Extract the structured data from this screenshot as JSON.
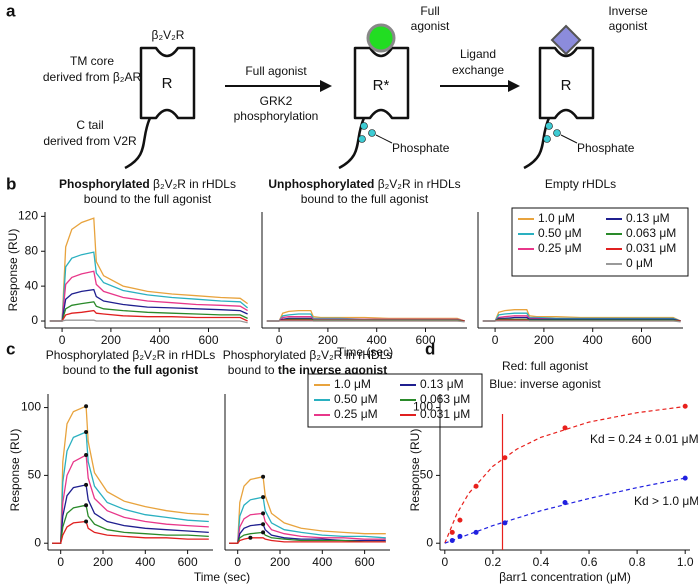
{
  "panel_labels": [
    "a",
    "b",
    "c",
    "d"
  ],
  "diagram": {
    "receptor_label": "β₂V₂R",
    "tm_core": [
      "TM core",
      "derived from β₂AR"
    ],
    "c_tail": [
      "C tail",
      "derived from V2R"
    ],
    "r1": "R",
    "step1": "Full agonist",
    "step1_below": [
      "GRK2",
      "phosphorylation"
    ],
    "ligand1": [
      "Full",
      "agonist"
    ],
    "r2": "R*",
    "phosphate1": "Phosphate",
    "step2": [
      "Ligand",
      "exchange"
    ],
    "ligand2": [
      "Inverse",
      "agonist"
    ],
    "r3": "R",
    "phosphate2": "Phosphate"
  },
  "chart_data": [
    {
      "type": "line",
      "title": [
        [
          {
            "text": "Phosphorylated",
            "bold": true
          },
          {
            "text": " β₂V₂R in rHDLs",
            "bold": false
          }
        ],
        [
          {
            "text": "bound to the full agonist",
            "bold": false
          }
        ]
      ],
      "ylabel": "Response (RU)",
      "x": [
        -50,
        0,
        15,
        40,
        80,
        130,
        140,
        170,
        250,
        350,
        450,
        550,
        650,
        730,
        760
      ],
      "xlim": [
        -70,
        770
      ],
      "ylim": [
        -8,
        125
      ],
      "xticks": [
        0,
        200,
        400,
        600
      ],
      "yticks": [
        0,
        40,
        80,
        120
      ],
      "series": [
        {
          "color": "#e8a33d",
          "values": [
            0,
            0,
            85,
            105,
            113,
            118,
            68,
            52,
            40,
            34,
            31,
            29,
            27,
            26,
            20
          ]
        },
        {
          "color": "#2ab0c0",
          "values": [
            0,
            0,
            62,
            72,
            76,
            79,
            55,
            44,
            35,
            30,
            27,
            25,
            23,
            22,
            15
          ]
        },
        {
          "color": "#e8378a",
          "values": [
            0,
            0,
            42,
            50,
            54,
            57,
            42,
            34,
            27,
            23,
            21,
            19,
            18,
            17,
            12
          ]
        },
        {
          "color": "#1f1f8f",
          "values": [
            0,
            0,
            25,
            31,
            34,
            36,
            28,
            23,
            19,
            16,
            15,
            14,
            13,
            12,
            8
          ]
        },
        {
          "color": "#2a8a2a",
          "values": [
            0,
            0,
            14,
            18,
            20,
            22,
            17,
            14,
            12,
            10,
            9,
            8,
            7,
            7,
            3
          ]
        },
        {
          "color": "#e02020",
          "values": [
            0,
            0,
            7,
            9,
            10,
            12,
            9,
            8,
            6,
            5,
            5,
            4,
            4,
            4,
            0
          ]
        },
        {
          "color": "#999999",
          "values": [
            0,
            0,
            1,
            1,
            1,
            1,
            0,
            0,
            0,
            0,
            0,
            0,
            0,
            0,
            -2
          ]
        }
      ]
    },
    {
      "type": "line",
      "title": [
        [
          {
            "text": "Unphosphorylated",
            "bold": true
          },
          {
            "text": " β₂V₂R in rHDLs",
            "bold": false
          }
        ],
        [
          {
            "text": "bound to the full agonist",
            "bold": false
          }
        ]
      ],
      "xlabel": "Time (sec)",
      "x": [
        -50,
        0,
        15,
        40,
        80,
        130,
        140,
        170,
        250,
        350,
        450,
        550,
        650,
        730,
        760
      ],
      "xlim": [
        -70,
        770
      ],
      "ylim": [
        -8,
        125
      ],
      "xticks": [
        0,
        200,
        400,
        600
      ],
      "series": [
        {
          "color": "#e8a33d",
          "values": [
            0,
            0,
            9,
            11,
            12,
            12,
            5,
            4,
            4,
            4,
            3,
            3,
            3,
            3,
            0
          ]
        },
        {
          "color": "#2ab0c0",
          "values": [
            0,
            0,
            6,
            7,
            8,
            8,
            3,
            3,
            3,
            2,
            2,
            2,
            2,
            2,
            0
          ]
        },
        {
          "color": "#e8378a",
          "values": [
            0,
            0,
            4,
            5,
            5,
            5,
            2,
            2,
            2,
            2,
            2,
            2,
            2,
            2,
            0
          ]
        },
        {
          "color": "#1f1f8f",
          "values": [
            0,
            0,
            2,
            3,
            3,
            3,
            1,
            1,
            1,
            1,
            1,
            1,
            1,
            1,
            0
          ]
        },
        {
          "color": "#2a8a2a",
          "values": [
            0,
            0,
            1,
            2,
            2,
            2,
            1,
            1,
            1,
            1,
            1,
            1,
            1,
            1,
            0
          ]
        },
        {
          "color": "#e02020",
          "values": [
            0,
            0,
            1,
            1,
            1,
            1,
            0,
            0,
            0,
            0,
            0,
            0,
            0,
            0,
            0
          ]
        },
        {
          "color": "#999999",
          "values": [
            0,
            0,
            0,
            0,
            0,
            0,
            0,
            0,
            0,
            0,
            0,
            0,
            0,
            0,
            -1
          ]
        }
      ]
    },
    {
      "type": "line",
      "title": [
        [
          {
            "text": "Empty rHDLs",
            "bold": false
          }
        ]
      ],
      "x": [
        -50,
        0,
        15,
        40,
        80,
        130,
        140,
        170,
        250,
        350,
        450,
        550,
        650,
        730,
        760
      ],
      "xlim": [
        -70,
        770
      ],
      "ylim": [
        -8,
        125
      ],
      "xticks": [
        0,
        200,
        400,
        600
      ],
      "legend": "upper right",
      "series": [
        {
          "name": "1.0 μM",
          "color": "#e8a33d",
          "values": [
            0,
            0,
            10,
            12,
            13,
            13,
            6,
            5,
            5,
            4,
            4,
            4,
            4,
            4,
            0
          ]
        },
        {
          "name": "0.50 μM",
          "color": "#2ab0c0",
          "values": [
            0,
            0,
            7,
            8,
            9,
            9,
            4,
            4,
            3,
            3,
            3,
            3,
            3,
            3,
            0
          ]
        },
        {
          "name": "0.25 μM",
          "color": "#e8378a",
          "values": [
            0,
            0,
            4,
            5,
            6,
            6,
            3,
            3,
            2,
            2,
            2,
            2,
            2,
            2,
            0
          ]
        },
        {
          "name": "0.13 μM",
          "color": "#1f1f8f",
          "values": [
            0,
            0,
            3,
            3,
            4,
            4,
            2,
            2,
            2,
            2,
            2,
            2,
            2,
            2,
            0
          ]
        },
        {
          "name": "0.063 μM",
          "color": "#2a8a2a",
          "values": [
            0,
            0,
            2,
            2,
            2,
            2,
            1,
            1,
            1,
            1,
            1,
            1,
            1,
            1,
            0
          ]
        },
        {
          "name": "0.031 μM",
          "color": "#e02020",
          "values": [
            0,
            0,
            1,
            1,
            1,
            1,
            0,
            0,
            0,
            0,
            0,
            0,
            0,
            0,
            0
          ]
        },
        {
          "name": "0 μM",
          "color": "#999999",
          "values": [
            0,
            0,
            0,
            0,
            0,
            0,
            0,
            0,
            0,
            0,
            0,
            0,
            0,
            0,
            -1
          ]
        }
      ]
    },
    {
      "type": "line",
      "title": [
        [
          {
            "text": "Phosphorylated β₂V₂R in rHDLs",
            "bold": false
          }
        ],
        [
          {
            "text": "bound to ",
            "bold": false
          },
          {
            "text": "the full agonist",
            "bold": true
          }
        ]
      ],
      "ylabel": "Response (RU)",
      "xlabel": "Time (sec)",
      "peak_markers": true,
      "x": [
        -40,
        0,
        10,
        30,
        60,
        120,
        130,
        160,
        220,
        300,
        400,
        500,
        600,
        700
      ],
      "xlim": [
        -60,
        720
      ],
      "ylim": [
        -5,
        110
      ],
      "xticks": [
        0,
        200,
        400,
        600
      ],
      "yticks": [
        0,
        50,
        100
      ],
      "series": [
        {
          "color": "#e8a33d",
          "values": [
            0,
            0,
            60,
            88,
            97,
            101,
            75,
            52,
            38,
            31,
            27,
            24,
            22,
            21
          ]
        },
        {
          "color": "#2ab0c0",
          "values": [
            0,
            0,
            45,
            68,
            78,
            82,
            60,
            42,
            30,
            25,
            21,
            19,
            17,
            16
          ]
        },
        {
          "color": "#e8378a",
          "values": [
            0,
            0,
            30,
            50,
            60,
            65,
            48,
            33,
            24,
            19,
            16,
            14,
            13,
            12
          ]
        },
        {
          "color": "#1f1f8f",
          "values": [
            0,
            0,
            20,
            35,
            41,
            43,
            32,
            22,
            16,
            13,
            11,
            10,
            9,
            8
          ]
        },
        {
          "color": "#2a8a2a",
          "values": [
            0,
            0,
            12,
            22,
            26,
            28,
            20,
            14,
            10,
            8,
            7,
            6,
            6,
            5
          ]
        },
        {
          "color": "#e02020",
          "values": [
            0,
            0,
            6,
            12,
            15,
            16,
            11,
            8,
            6,
            5,
            4,
            4,
            3,
            3
          ]
        }
      ]
    },
    {
      "type": "line",
      "title": [
        [
          {
            "text": "Phosphorylated β₂V₂R in rHDLs",
            "bold": false
          }
        ],
        [
          {
            "text": "bound to ",
            "bold": false
          },
          {
            "text": "the inverse agonist",
            "bold": true
          }
        ]
      ],
      "peak_markers": true,
      "legend": "upper right",
      "x": [
        -40,
        0,
        10,
        30,
        60,
        120,
        130,
        160,
        220,
        300,
        400,
        500,
        600,
        700
      ],
      "xlim": [
        -60,
        720
      ],
      "ylim": [
        -5,
        110
      ],
      "xticks": [
        0,
        200,
        400,
        600
      ],
      "series": [
        {
          "name": "1.0 μM",
          "color": "#e8a33d",
          "values": [
            0,
            0,
            30,
            42,
            47,
            49,
            35,
            22,
            15,
            11,
            9,
            8,
            7,
            7
          ]
        },
        {
          "name": "0.50 μM",
          "color": "#2ab0c0",
          "values": [
            0,
            0,
            20,
            28,
            32,
            34,
            24,
            15,
            10,
            8,
            6,
            5,
            5,
            4
          ]
        },
        {
          "name": "0.25 μM",
          "color": "#e8378a",
          "values": [
            0,
            0,
            12,
            18,
            21,
            22,
            16,
            10,
            7,
            5,
            4,
            4,
            3,
            3
          ]
        },
        {
          "name": "0.13 μM",
          "color": "#1f1f8f",
          "values": [
            0,
            0,
            7,
            11,
            13,
            14,
            10,
            6,
            4,
            3,
            3,
            2,
            2,
            2
          ]
        },
        {
          "name": "0.063 μM",
          "color": "#2a8a2a",
          "values": [
            0,
            0,
            4,
            6,
            7,
            8,
            6,
            4,
            3,
            2,
            2,
            2,
            1,
            1
          ]
        },
        {
          "name": "0.031 μM",
          "color": "#e02020",
          "values": [
            0,
            0,
            2,
            3,
            4,
            4,
            3,
            2,
            1,
            1,
            1,
            1,
            1,
            1
          ]
        }
      ]
    },
    {
      "type": "scatter",
      "ylabel": "Response (RU)",
      "xlabel": "βarr1 concentration (μM)",
      "x": [
        0.031,
        0.063,
        0.13,
        0.25,
        0.5,
        1.0
      ],
      "xlim": [
        -0.02,
        1.02
      ],
      "ylim": [
        -5,
        110
      ],
      "xticks": [
        0,
        0.2,
        0.4,
        0.6,
        0.8,
        {
          "value": 1,
          "label": "1.0"
        }
      ],
      "yticks": [
        0,
        50,
        100
      ],
      "series": [
        {
          "color": "#e8201c",
          "values": [
            8,
            17,
            42,
            63,
            85,
            101
          ],
          "fit": {
            "x": [
              0,
              0.05,
              0.1,
              0.2,
              0.3,
              0.4,
              0.6,
              0.8,
              1.0
            ],
            "values": [
              0,
              21.6,
              36.8,
              56.8,
              69.4,
              78.1,
              89.3,
              96.2,
              100.8
            ]
          }
        },
        {
          "color": "#2020e0",
          "values": [
            2,
            5,
            8,
            15,
            30,
            48
          ],
          "fit": {
            "x": [
              0,
              0.2,
              0.4,
              0.6,
              0.8,
              1.0
            ],
            "values": [
              0,
              13,
              24,
              33,
              41,
              48
            ]
          }
        }
      ],
      "vline": {
        "value": 0.24,
        "color": "#e8201c"
      },
      "annotations": [
        {
          "text": "Red: full agonist",
          "color": "#e8201c"
        },
        {
          "text": "Blue: inverse agonist",
          "color": "#2020e0"
        },
        {
          "text": "Kd = 0.24 ± 0.01 μM",
          "color": "#e8201c"
        },
        {
          "text": "Kd > 1.0 μM",
          "color": "#2020e0"
        }
      ]
    }
  ]
}
